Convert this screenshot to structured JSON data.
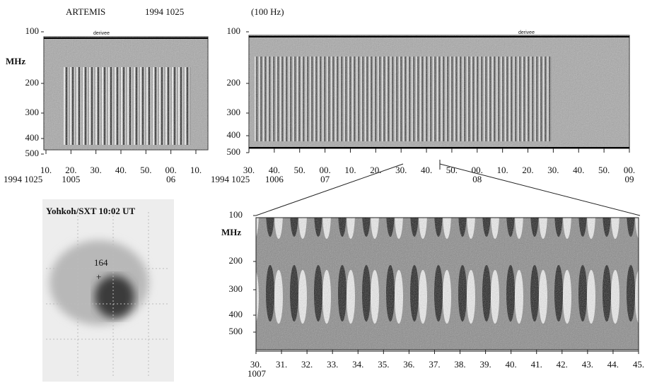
{
  "header": {
    "instrument": "ARTEMIS",
    "date": "1994 1025",
    "rate": "(100 Hz)"
  },
  "panel_a": {
    "label": "derivee",
    "y_unit": "MHz",
    "y_ticks": [
      "100",
      "200",
      "300",
      "400",
      "500"
    ],
    "x_ticks": [
      "10.",
      "20.",
      "30.",
      "40.",
      "50.",
      "00.",
      "10."
    ],
    "x_sub": [
      null,
      "1005",
      null,
      null,
      null,
      "06",
      null
    ],
    "date": "1994 1025"
  },
  "panel_b": {
    "label": "derivee",
    "y_ticks": [
      "100",
      "200",
      "300",
      "400",
      "500"
    ],
    "x_ticks": [
      "30.",
      "40.",
      "50.",
      "00.",
      "10.",
      "20.",
      "30.",
      "40.",
      "50.",
      "00.",
      "10.",
      "20.",
      "30.",
      "40.",
      "50.",
      "00."
    ],
    "x_sub": [
      null,
      "1006",
      null,
      "07",
      null,
      null,
      null,
      null,
      null,
      "08",
      null,
      null,
      null,
      null,
      null,
      "09"
    ],
    "date": "1994 1025"
  },
  "image": {
    "title": "Yohkoh/SXT   10:02 UT",
    "marker_label": "164",
    "marker": "+"
  },
  "panel_c": {
    "y_unit": "MHz",
    "y_ticks": [
      "100",
      "200",
      "300",
      "400",
      "500"
    ],
    "x_ticks": [
      "30.",
      "31.",
      "32.",
      "33.",
      "34.",
      "35.",
      "36.",
      "37.",
      "38.",
      "39.",
      "40.",
      "41.",
      "42.",
      "43.",
      "44.",
      "45."
    ],
    "x_sub": [
      "1007",
      null,
      null,
      null,
      null,
      null,
      null,
      null,
      null,
      null,
      null,
      null,
      null,
      null,
      null,
      null
    ]
  }
}
